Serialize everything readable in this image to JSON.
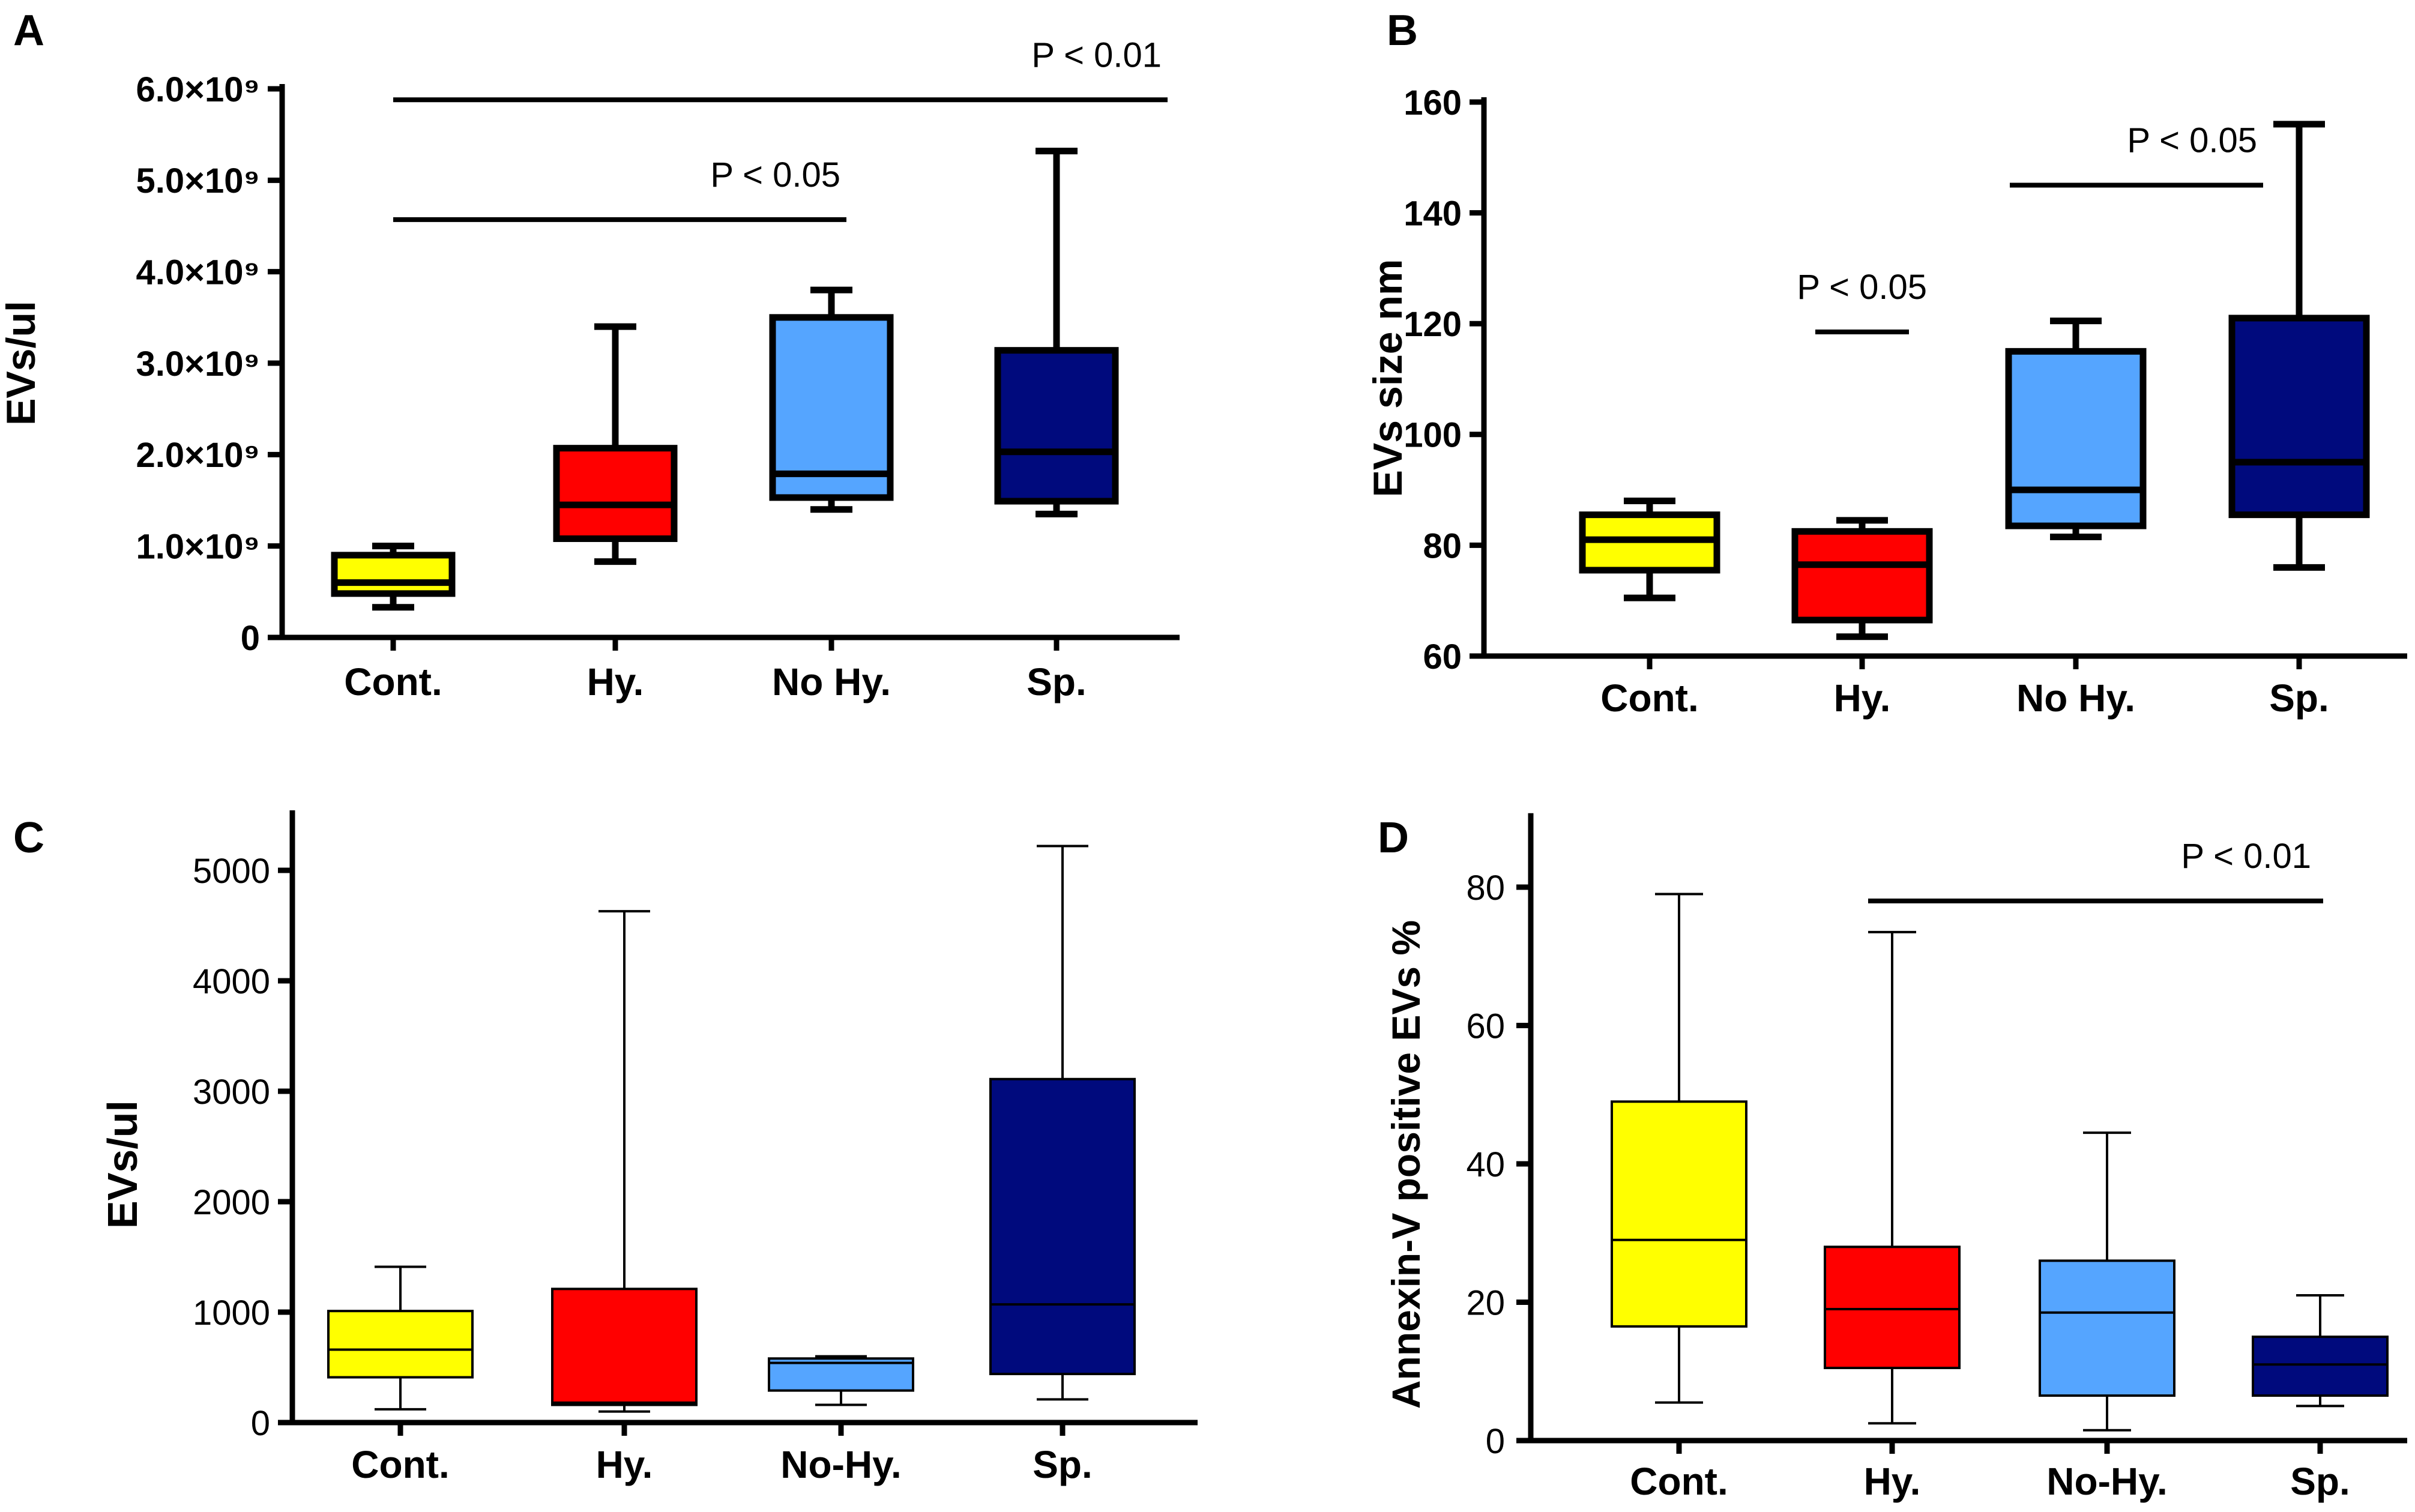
{
  "colors": {
    "cont": "#ffff00",
    "hy": "#ff0000",
    "nohy": "#55a5ff",
    "sp": "#000a7d",
    "axis": "#000000"
  },
  "chart_data": [
    {
      "panel": "A",
      "type": "box",
      "ylabel": "EVs/ul",
      "ylim": [
        0,
        6000000000
      ],
      "yticks": [
        0,
        1000000000,
        2000000000,
        3000000000,
        4000000000,
        5000000000,
        6000000000
      ],
      "ytick_labels": [
        "0",
        "1.0×10⁹",
        "2.0×10⁹",
        "3.0×10⁹",
        "4.0×10⁹",
        "5.0×10⁹",
        "6.0×10⁹"
      ],
      "categories": [
        "Cont.",
        "Hy.",
        "No Hy.",
        "Sp."
      ],
      "series": [
        {
          "name": "Cont.",
          "color": "#ffff00",
          "min": 330000000,
          "q1": 480000000,
          "median": 600000000,
          "q3": 900000000,
          "max": 1000000000
        },
        {
          "name": "Hy.",
          "color": "#ff0000",
          "min": 830000000,
          "q1": 1080000000,
          "median": 1450000000,
          "q3": 2070000000,
          "max": 3400000000
        },
        {
          "name": "No Hy.",
          "color": "#55a5ff",
          "min": 1400000000,
          "q1": 1530000000,
          "median": 1790000000,
          "q3": 3500000000,
          "max": 3800000000
        },
        {
          "name": "Sp.",
          "color": "#000a7d",
          "min": 1350000000,
          "q1": 1490000000,
          "median": 2030000000,
          "q3": 3140000000,
          "max": 5320000000
        }
      ],
      "significance": [
        {
          "from": "Cont.",
          "to": "No Hy.",
          "label": "P < 0.05",
          "y": 4570000000
        },
        {
          "from": "Cont.",
          "to": "Sp.",
          "label": "P < 0.01",
          "y": 5880000000
        }
      ]
    },
    {
      "panel": "B",
      "type": "box",
      "ylabel": "EVs size nm",
      "ylim": [
        60,
        160
      ],
      "yticks": [
        60,
        80,
        100,
        120,
        140,
        160
      ],
      "ytick_labels": [
        "60",
        "80",
        "100",
        "120",
        "140",
        "160"
      ],
      "categories": [
        "Cont.",
        "Hy.",
        "No Hy.",
        "Sp."
      ],
      "series": [
        {
          "name": "Cont.",
          "color": "#ffff00",
          "min": 70.5,
          "q1": 75.5,
          "median": 81,
          "q3": 85.5,
          "max": 88
        },
        {
          "name": "Hy.",
          "color": "#ff0000",
          "min": 63.5,
          "q1": 66.5,
          "median": 76.5,
          "q3": 82.5,
          "max": 84.5
        },
        {
          "name": "No Hy.",
          "color": "#55a5ff",
          "min": 81.5,
          "q1": 83.5,
          "median": 90,
          "q3": 115,
          "max": 120.5
        },
        {
          "name": "Sp.",
          "color": "#000a7d",
          "min": 76,
          "q1": 85.5,
          "median": 95,
          "q3": 121,
          "max": 156
        }
      ],
      "significance": [
        {
          "from": "Hy.",
          "to": "Hy.",
          "label": "P < 0.05",
          "y": 118.5
        },
        {
          "from": "No Hy.",
          "to": "Sp.",
          "label": "P < 0.05",
          "y": 145
        }
      ]
    },
    {
      "panel": "C",
      "type": "box",
      "ylabel": "EVs/ul",
      "ylim": [
        0,
        5500
      ],
      "yticks": [
        0,
        1000,
        2000,
        3000,
        4000,
        5000
      ],
      "ytick_labels": [
        "0",
        "1000",
        "2000",
        "3000",
        "4000",
        "5000"
      ],
      "categories": [
        "Cont.",
        "Hy.",
        "No-Hy.",
        "Sp."
      ],
      "series": [
        {
          "name": "Cont.",
          "color": "#ffff00",
          "min": 120,
          "q1": 410,
          "median": 660,
          "q3": 1010,
          "max": 1410
        },
        {
          "name": "Hy.",
          "color": "#ff0000",
          "min": 100,
          "q1": 160,
          "median": 180,
          "q3": 1210,
          "max": 4630
        },
        {
          "name": "No-Hy.",
          "color": "#55a5ff",
          "min": 160,
          "q1": 290,
          "median": 540,
          "q3": 580,
          "max": 600
        },
        {
          "name": "Sp.",
          "color": "#000a7d",
          "min": 210,
          "q1": 440,
          "median": 1070,
          "q3": 3110,
          "max": 5220
        }
      ],
      "significance": []
    },
    {
      "panel": "D",
      "type": "box",
      "ylabel": "Annexin-V positive EVs %",
      "ylim": [
        0,
        90
      ],
      "yticks": [
        0,
        20,
        40,
        60,
        80
      ],
      "ytick_labels": [
        "0",
        "20",
        "40",
        "60",
        "80"
      ],
      "categories": [
        "Cont.",
        "Hy.",
        "No-Hy.",
        "Sp."
      ],
      "series": [
        {
          "name": "Cont.",
          "color": "#ffff00",
          "min": 5.5,
          "q1": 16.5,
          "median": 29,
          "q3": 49,
          "max": 79
        },
        {
          "name": "Hy.",
          "color": "#ff0000",
          "min": 2.5,
          "q1": 10.5,
          "median": 19,
          "q3": 28,
          "max": 73.5
        },
        {
          "name": "No-Hy.",
          "color": "#55a5ff",
          "min": 1.5,
          "q1": 6.5,
          "median": 18.5,
          "q3": 26,
          "max": 44.5
        },
        {
          "name": "Sp.",
          "color": "#000a7d",
          "min": 5,
          "q1": 6.5,
          "median": 11,
          "q3": 15,
          "max": 21
        }
      ],
      "significance": [
        {
          "from": "Hy.",
          "to": "Sp.",
          "label": "P < 0.01",
          "y": 78
        }
      ]
    }
  ]
}
